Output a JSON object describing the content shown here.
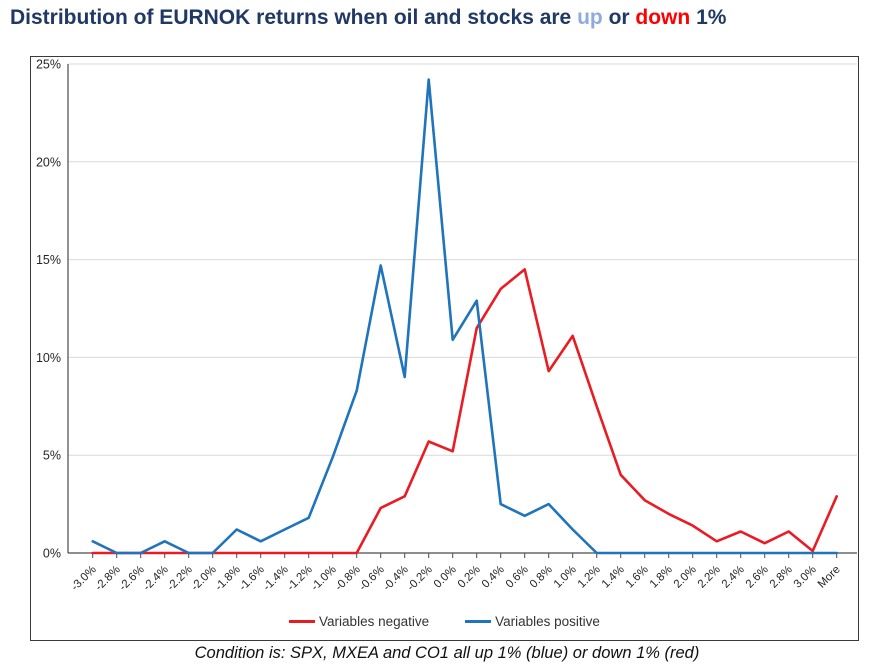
{
  "title": {
    "part1": "Distribution of EURNOK returns when oil and stocks are ",
    "up_word": "up",
    "part2": " or ",
    "down_word": "down",
    "part3": " 1%"
  },
  "colors": {
    "title_navy": "#1f3864",
    "up_blue": "#8faadc",
    "down_red": "#ff0000",
    "series_negative": "#e91c23",
    "series_positive": "#1f74bb",
    "gridline": "#d9d9d9",
    "axis": "#4a4a4a",
    "tick_label": "#262626"
  },
  "legend": {
    "negative": "Variables negative",
    "positive": "Variables positive"
  },
  "caption": "Condition is: SPX, MXEA and CO1 all up 1% (blue) or down 1% (red)",
  "chart_data": {
    "type": "line",
    "title": "Distribution of EURNOK returns when oil and stocks are up or down 1%",
    "xlabel": "",
    "ylabel": "",
    "categories": [
      "-3.0%",
      "-2.8%",
      "-2.6%",
      "-2.4%",
      "-2.2%",
      "-2.0%",
      "-1.8%",
      "-1.6%",
      "-1.4%",
      "-1.2%",
      "-1.0%",
      "-0.8%",
      "-0.6%",
      "-0.4%",
      "-0.2%",
      "0.0%",
      "0.2%",
      "0.4%",
      "0.6%",
      "0.8%",
      "1.0%",
      "1.2%",
      "1.4%",
      "1.6%",
      "1.8%",
      "2.0%",
      "2.2%",
      "2.4%",
      "2.6%",
      "2.8%",
      "3.0%",
      "More"
    ],
    "series": [
      {
        "name": "Variables negative",
        "color_key": "series_negative",
        "values": [
          0,
          0,
          0,
          0,
          0,
          0,
          0,
          0,
          0,
          0,
          0,
          0,
          2.3,
          2.9,
          5.7,
          5.2,
          11.5,
          13.5,
          14.5,
          9.3,
          11.1,
          7.5,
          4.0,
          2.7,
          2.0,
          1.4,
          0.6,
          1.1,
          0.5,
          1.1,
          0.1,
          2.9
        ]
      },
      {
        "name": "Variables positive",
        "color_key": "series_positive",
        "values": [
          0.6,
          0,
          0,
          0.6,
          0,
          0,
          1.2,
          0.6,
          1.2,
          1.8,
          4.9,
          8.3,
          14.7,
          9.0,
          24.2,
          10.9,
          12.9,
          2.5,
          1.9,
          2.5,
          1.2,
          0,
          0,
          0,
          0,
          0,
          0,
          0,
          0,
          0,
          0,
          0
        ]
      }
    ],
    "ylim": [
      0,
      25
    ],
    "y_ticks": [
      0,
      5,
      10,
      15,
      20,
      25
    ],
    "y_tick_suffix": "%",
    "grid": true,
    "legend_position": "bottom-inside"
  }
}
